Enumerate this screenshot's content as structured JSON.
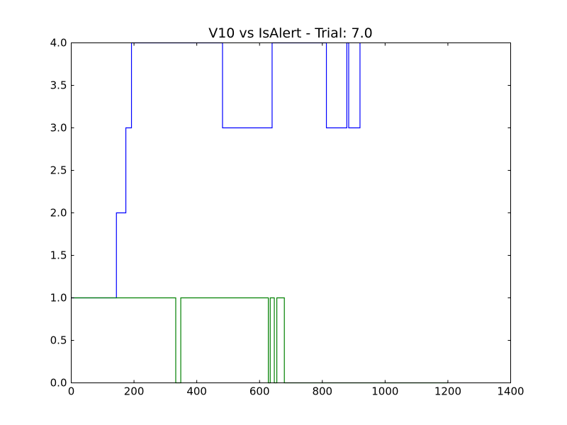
{
  "chart_data": {
    "type": "line",
    "title": "V10 vs IsAlert - Trial: 7.0",
    "xlabel": "",
    "ylabel": "",
    "xlim": [
      0,
      1400
    ],
    "ylim": [
      0,
      4
    ],
    "grid": false,
    "x_ticks": [
      "0",
      "200",
      "400",
      "600",
      "800",
      "1000",
      "1200",
      "1400"
    ],
    "y_ticks": [
      "0.0",
      "0.5",
      "1.0",
      "1.5",
      "2.0",
      "2.5",
      "3.0",
      "3.5",
      "4.0"
    ],
    "series": [
      {
        "color": "#0000ff",
        "step": true,
        "points": [
          [
            0,
            1
          ],
          [
            144,
            1
          ],
          [
            144,
            2
          ],
          [
            174,
            2
          ],
          [
            174,
            3
          ],
          [
            192,
            3
          ],
          [
            192,
            4
          ],
          [
            482,
            4
          ],
          [
            482,
            3
          ],
          [
            640,
            3
          ],
          [
            640,
            4
          ],
          [
            813,
            4
          ],
          [
            813,
            3
          ],
          [
            878,
            3
          ],
          [
            878,
            4
          ],
          [
            884,
            4
          ],
          [
            884,
            3
          ],
          [
            920,
            3
          ],
          [
            920,
            4
          ]
        ]
      },
      {
        "color": "#008000",
        "step": true,
        "points": [
          [
            0,
            1
          ],
          [
            333,
            1
          ],
          [
            333,
            0
          ],
          [
            349,
            0
          ],
          [
            349,
            1
          ],
          [
            628,
            1
          ],
          [
            628,
            0
          ],
          [
            634,
            0
          ],
          [
            634,
            1
          ],
          [
            647,
            1
          ],
          [
            647,
            0
          ],
          [
            655,
            0
          ],
          [
            655,
            1
          ],
          [
            679,
            1
          ],
          [
            679,
            0
          ],
          [
            1200,
            0
          ]
        ]
      }
    ]
  }
}
